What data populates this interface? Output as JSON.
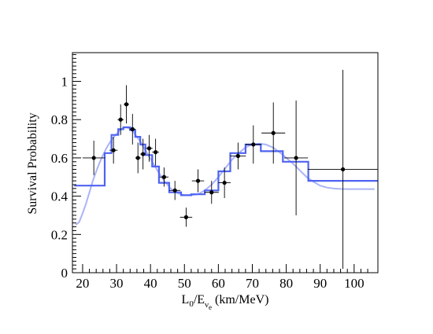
{
  "chart_data": {
    "type": "scatter",
    "title": "",
    "xlabel": {
      "main": "L",
      "sub0": "0",
      "mid": "/E",
      "subnu": "ν",
      "sube": "e",
      "unit": " (km/MeV)"
    },
    "ylabel": "Survival Probability",
    "xlim": [
      17,
      107
    ],
    "ylim": [
      0,
      1.15
    ],
    "xticks": [
      20,
      30,
      40,
      50,
      60,
      70,
      80,
      90,
      100
    ],
    "yticks": [
      0,
      0.2,
      0.4,
      0.6,
      0.8,
      1
    ],
    "series": [
      {
        "kind": "data-points-with-error-bars",
        "color": "#000000",
        "points": [
          {
            "x": 23.3,
            "y": 0.6,
            "xerr": 3.3,
            "yerr": 0.09
          },
          {
            "x": 29.1,
            "y": 0.64,
            "xerr": 1.2,
            "yerr": 0.07
          },
          {
            "x": 31.2,
            "y": 0.8,
            "xerr": 0.9,
            "yerr": 0.08
          },
          {
            "x": 32.9,
            "y": 0.88,
            "xerr": 0.8,
            "yerr": 0.1
          },
          {
            "x": 34.7,
            "y": 0.75,
            "xerr": 0.9,
            "yerr": 0.08
          },
          {
            "x": 36.3,
            "y": 0.6,
            "xerr": 0.8,
            "yerr": 0.08
          },
          {
            "x": 37.8,
            "y": 0.62,
            "xerr": 0.8,
            "yerr": 0.08
          },
          {
            "x": 39.6,
            "y": 0.65,
            "xerr": 1.0,
            "yerr": 0.07
          },
          {
            "x": 41.5,
            "y": 0.63,
            "xerr": 1.0,
            "yerr": 0.07
          },
          {
            "x": 44.0,
            "y": 0.5,
            "xerr": 1.3,
            "yerr": 0.05
          },
          {
            "x": 47.2,
            "y": 0.43,
            "xerr": 1.6,
            "yerr": 0.05
          },
          {
            "x": 50.5,
            "y": 0.29,
            "xerr": 1.8,
            "yerr": 0.05
          },
          {
            "x": 54.0,
            "y": 0.48,
            "xerr": 1.8,
            "yerr": 0.06
          },
          {
            "x": 58.0,
            "y": 0.42,
            "xerr": 2.1,
            "yerr": 0.06
          },
          {
            "x": 61.8,
            "y": 0.47,
            "xerr": 1.8,
            "yerr": 0.08
          },
          {
            "x": 65.8,
            "y": 0.61,
            "xerr": 2.3,
            "yerr": 0.07
          },
          {
            "x": 70.3,
            "y": 0.67,
            "xerr": 2.4,
            "yerr": 0.1
          },
          {
            "x": 76.2,
            "y": 0.73,
            "xerr": 3.5,
            "yerr": 0.16
          },
          {
            "x": 82.9,
            "y": 0.6,
            "xerr": 3.5,
            "yerr": 0.3
          },
          {
            "x": 96.7,
            "y": 0.54,
            "xerr": 10.3,
            "yerr": 0.52
          }
        ]
      },
      {
        "kind": "histogram-step",
        "color": "#4f63f0",
        "edges": [
          17.5,
          26.5,
          28.5,
          30.5,
          32,
          34,
          35.5,
          37,
          38.5,
          40.5,
          42.5,
          45.5,
          49,
          52,
          56,
          60,
          63.5,
          68,
          72.5,
          79,
          86.5,
          107
        ],
        "values": [
          0.455,
          0.625,
          0.72,
          0.75,
          0.76,
          0.745,
          0.71,
          0.67,
          0.615,
          0.555,
          0.47,
          0.42,
          0.405,
          0.41,
          0.43,
          0.53,
          0.625,
          0.67,
          0.635,
          0.58,
          0.48
        ]
      },
      {
        "kind": "smooth-curve",
        "color": "#aab4f8",
        "x": [
          18,
          19,
          20,
          21,
          22,
          23,
          24,
          25,
          26,
          27,
          28,
          29,
          30,
          31,
          32,
          33,
          34,
          35,
          36,
          37,
          38,
          40,
          42,
          44,
          46,
          48,
          50,
          52,
          54,
          56,
          58,
          60,
          62,
          64,
          66,
          68,
          70,
          72,
          74,
          76,
          78,
          80,
          82,
          84,
          86,
          88,
          90,
          92,
          94,
          96,
          98,
          100,
          103,
          106
        ],
        "y": [
          0.25,
          0.265,
          0.31,
          0.36,
          0.42,
          0.48,
          0.53,
          0.575,
          0.615,
          0.65,
          0.68,
          0.705,
          0.725,
          0.745,
          0.757,
          0.76,
          0.752,
          0.735,
          0.71,
          0.685,
          0.655,
          0.595,
          0.535,
          0.48,
          0.44,
          0.415,
          0.405,
          0.405,
          0.41,
          0.43,
          0.46,
          0.5,
          0.545,
          0.59,
          0.625,
          0.655,
          0.67,
          0.675,
          0.67,
          0.655,
          0.63,
          0.6,
          0.57,
          0.535,
          0.5,
          0.475,
          0.455,
          0.445,
          0.44,
          0.438,
          0.437,
          0.437,
          0.437,
          0.437
        ]
      }
    ]
  }
}
